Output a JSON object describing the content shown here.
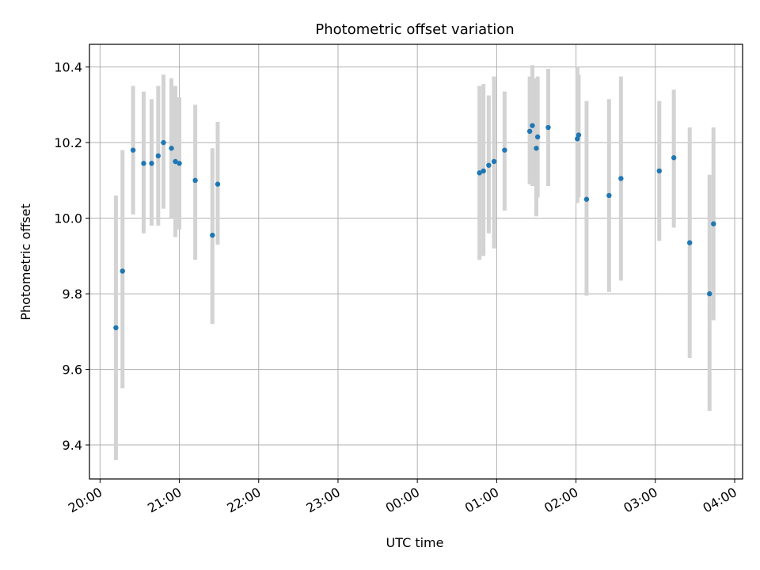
{
  "chart_data": {
    "type": "scatter",
    "title": "Photometric offset variation",
    "xlabel": "UTC time",
    "ylabel": "Photometric offset",
    "x_axis_type": "time",
    "xlim": [
      "2024-01-01T19:52",
      "2024-01-02T04:06"
    ],
    "ylim": [
      9.31,
      10.46
    ],
    "x_ticks": [
      "2024-01-01T20:00",
      "2024-01-01T21:00",
      "2024-01-01T22:00",
      "2024-01-01T23:00",
      "2024-01-02T00:00",
      "2024-01-02T01:00",
      "2024-01-02T02:00",
      "2024-01-02T03:00",
      "2024-01-02T04:00"
    ],
    "x_tick_labels": [
      "20:00",
      "21:00",
      "22:00",
      "23:00",
      "00:00",
      "01:00",
      "02:00",
      "03:00",
      "04:00"
    ],
    "y_ticks": [
      9.4,
      9.6,
      9.8,
      10.0,
      10.2,
      10.4
    ],
    "y_tick_labels": [
      "9.4",
      "9.6",
      "9.8",
      "10.0",
      "10.2",
      "10.4"
    ],
    "grid": true,
    "colors": {
      "point": "#1f77b4",
      "errorbar": "#d3d3d3",
      "grid": "#b0b0b0"
    },
    "series": [
      {
        "points": [
          {
            "x": "2024-01-01T20:12",
            "y": 9.71,
            "low": 9.36,
            "high": 10.06
          },
          {
            "x": "2024-01-01T20:17",
            "y": 9.86,
            "low": 9.55,
            "high": 10.18
          },
          {
            "x": "2024-01-01T20:25",
            "y": 10.18,
            "low": 10.01,
            "high": 10.35
          },
          {
            "x": "2024-01-01T20:33",
            "y": 10.145,
            "low": 9.96,
            "high": 10.335
          },
          {
            "x": "2024-01-01T20:39",
            "y": 10.145,
            "low": 9.98,
            "high": 10.315
          },
          {
            "x": "2024-01-01T20:44",
            "y": 10.165,
            "low": 9.98,
            "high": 10.35
          },
          {
            "x": "2024-01-01T20:48",
            "y": 10.2,
            "low": 10.025,
            "high": 10.38
          },
          {
            "x": "2024-01-01T20:54",
            "y": 10.185,
            "low": 10.0,
            "high": 10.37
          },
          {
            "x": "2024-01-01T20:57",
            "y": 10.15,
            "low": 9.95,
            "high": 10.35
          },
          {
            "x": "2024-01-01T21:00",
            "y": 10.145,
            "low": 9.97,
            "high": 10.32
          },
          {
            "x": "2024-01-01T21:12",
            "y": 10.1,
            "low": 9.89,
            "high": 10.3
          },
          {
            "x": "2024-01-01T21:25",
            "y": 9.955,
            "low": 9.72,
            "high": 10.185
          },
          {
            "x": "2024-01-01T21:29",
            "y": 10.09,
            "low": 9.93,
            "high": 10.255
          },
          {
            "x": "2024-01-02T00:47",
            "y": 10.12,
            "low": 9.89,
            "high": 10.35
          },
          {
            "x": "2024-01-02T00:50",
            "y": 10.125,
            "low": 9.9,
            "high": 10.355
          },
          {
            "x": "2024-01-02T00:54",
            "y": 10.14,
            "low": 9.96,
            "high": 10.325
          },
          {
            "x": "2024-01-02T00:58",
            "y": 10.15,
            "low": 9.92,
            "high": 10.375
          },
          {
            "x": "2024-01-02T01:06",
            "y": 10.18,
            "low": 10.02,
            "high": 10.335
          },
          {
            "x": "2024-01-02T01:25",
            "y": 10.23,
            "low": 10.09,
            "high": 10.375
          },
          {
            "x": "2024-01-02T01:27",
            "y": 10.245,
            "low": 10.085,
            "high": 10.405
          },
          {
            "x": "2024-01-02T01:30",
            "y": 10.185,
            "low": 10.005,
            "high": 10.37
          },
          {
            "x": "2024-01-02T01:31",
            "y": 10.215,
            "low": 10.055,
            "high": 10.375
          },
          {
            "x": "2024-01-02T01:39",
            "y": 10.24,
            "low": 10.085,
            "high": 10.395
          },
          {
            "x": "2024-01-02T02:01",
            "y": 10.21,
            "low": 10.04,
            "high": 10.4
          },
          {
            "x": "2024-01-02T02:02",
            "y": 10.22,
            "low": 10.055,
            "high": 10.38
          },
          {
            "x": "2024-01-02T02:08",
            "y": 10.05,
            "low": 9.795,
            "high": 10.31
          },
          {
            "x": "2024-01-02T02:25",
            "y": 10.06,
            "low": 9.805,
            "high": 10.315
          },
          {
            "x": "2024-01-02T02:34",
            "y": 10.105,
            "low": 9.835,
            "high": 10.375
          },
          {
            "x": "2024-01-02T03:03",
            "y": 10.125,
            "low": 9.94,
            "high": 10.31
          },
          {
            "x": "2024-01-02T03:14",
            "y": 10.16,
            "low": 9.975,
            "high": 10.34
          },
          {
            "x": "2024-01-02T03:26",
            "y": 9.935,
            "low": 9.63,
            "high": 10.24
          },
          {
            "x": "2024-01-02T03:41",
            "y": 9.8,
            "low": 9.49,
            "high": 10.115
          },
          {
            "x": "2024-01-02T03:44",
            "y": 9.985,
            "low": 9.73,
            "high": 10.24
          }
        ]
      }
    ]
  }
}
